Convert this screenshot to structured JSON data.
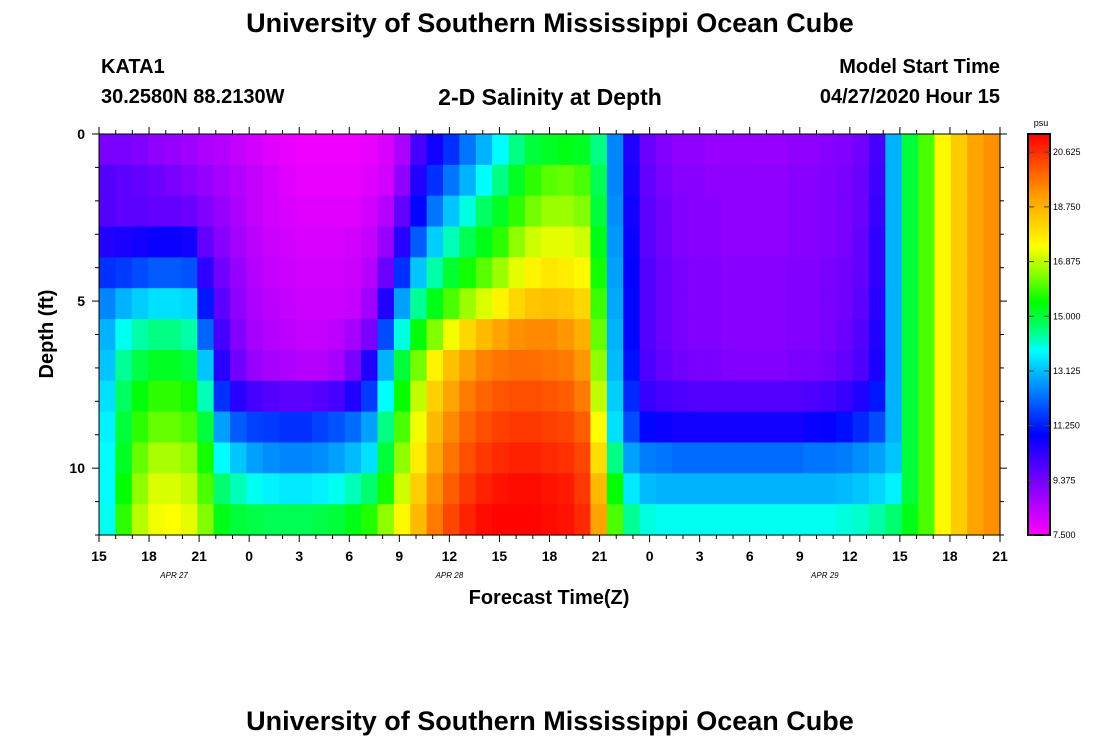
{
  "header": {
    "title": "University of Southern Mississippi Ocean Cube",
    "station": "KATA1",
    "coords": "30.2580N 88.2130W",
    "chart_title": "2-D Salinity at Depth",
    "model_start_label": "Model Start Time",
    "model_start_value": "04/27/2020 Hour 15"
  },
  "footer": {
    "title": "University of Southern Mississippi Ocean Cube"
  },
  "chart_data": {
    "type": "heatmap",
    "title": "2-D Salinity at Depth",
    "xlabel": "Forecast Time(Z)",
    "ylabel": "Depth (ft)",
    "units": "psu",
    "x_hours": [
      0,
      54
    ],
    "xtick_labels": [
      "15",
      "18",
      "21",
      "0",
      "3",
      "6",
      "9",
      "12",
      "15",
      "18",
      "21",
      "0",
      "3",
      "6",
      "9",
      "12",
      "15",
      "18",
      "21"
    ],
    "day_labels": [
      {
        "label": "APR 27",
        "hour": 4.5
      },
      {
        "label": "APR 28",
        "hour": 21
      },
      {
        "label": "APR 29",
        "hour": 43.5
      }
    ],
    "depth_rows_ft": [
      0,
      1,
      2,
      3,
      4,
      5,
      6,
      7,
      8,
      9,
      10,
      11,
      12
    ],
    "y_range_ft": [
      0,
      12
    ],
    "ytick_labels": [
      "0",
      "5",
      "10"
    ],
    "colorbar": {
      "min": 7.5,
      "max": 21.25,
      "tick_labels": [
        "20.625",
        "18.750",
        "16.875",
        "15.000",
        "13.125",
        "11.250",
        "9.375",
        "7.500"
      ],
      "tick_values": [
        20.625,
        18.75,
        16.875,
        15.0,
        13.125,
        11.25,
        9.375,
        7.5
      ]
    },
    "salinity_psu": [
      [
        9.3,
        9.3,
        9.2,
        9.0,
        8.9,
        8.8,
        8.6,
        8.5,
        8.3,
        8.1,
        7.9,
        7.8,
        7.7,
        7.7,
        7.7,
        7.7,
        7.8,
        8.0,
        8.6,
        10.0,
        10.7,
        11.5,
        12.3,
        13.0,
        13.8,
        14.5,
        15.0,
        15.2,
        15.3,
        15.2,
        14.5,
        12.5,
        10.5,
        9.5,
        9.2,
        9.0,
        9.0,
        8.9,
        8.9,
        8.9,
        8.9,
        8.9,
        9.0,
        9.0,
        9.1,
        9.2,
        9.4,
        10.0,
        13.0,
        15.0,
        16.0,
        17.5,
        18.3,
        19.0,
        19.3
      ],
      [
        9.8,
        9.7,
        9.6,
        9.5,
        9.3,
        9.1,
        8.9,
        8.7,
        8.5,
        8.3,
        8.1,
        7.9,
        7.8,
        7.8,
        7.8,
        7.8,
        7.9,
        8.1,
        9.0,
        10.5,
        11.5,
        12.3,
        13.0,
        13.8,
        14.5,
        15.2,
        15.8,
        16.1,
        16.2,
        16.0,
        14.8,
        12.5,
        10.6,
        9.6,
        9.3,
        9.1,
        9.1,
        9.0,
        9.0,
        9.0,
        9.0,
        9.0,
        9.1,
        9.1,
        9.2,
        9.3,
        9.5,
        10.1,
        13.0,
        15.0,
        16.0,
        17.5,
        18.3,
        19.0,
        19.3
      ],
      [
        9.8,
        9.7,
        9.7,
        9.6,
        9.6,
        9.5,
        9.2,
        8.9,
        8.6,
        8.3,
        8.1,
        8.0,
        7.9,
        7.9,
        7.9,
        7.9,
        8.1,
        8.5,
        9.6,
        11.0,
        12.3,
        13.2,
        14.0,
        14.7,
        15.2,
        15.8,
        16.3,
        16.6,
        16.6,
        16.4,
        15.0,
        12.6,
        10.7,
        9.7,
        9.4,
        9.2,
        9.1,
        9.1,
        9.0,
        9.0,
        9.0,
        9.0,
        9.1,
        9.1,
        9.2,
        9.3,
        9.5,
        10.2,
        13.0,
        15.0,
        16.0,
        17.5,
        18.3,
        19.0,
        19.3
      ],
      [
        10.5,
        10.6,
        10.7,
        10.8,
        10.8,
        10.7,
        9.6,
        9.1,
        8.7,
        8.4,
        8.2,
        8.1,
        8.0,
        8.0,
        8.0,
        8.1,
        8.3,
        8.9,
        10.4,
        12.0,
        13.3,
        14.2,
        14.8,
        15.3,
        15.8,
        16.5,
        17.0,
        17.2,
        17.2,
        17.0,
        15.3,
        12.7,
        10.8,
        9.7,
        9.4,
        9.2,
        9.1,
        9.1,
        9.0,
        9.0,
        9.0,
        9.0,
        9.1,
        9.1,
        9.2,
        9.3,
        9.6,
        10.3,
        13.0,
        15.0,
        16.0,
        17.5,
        18.3,
        19.0,
        19.3
      ],
      [
        11.5,
        11.6,
        11.8,
        12.0,
        12.0,
        11.9,
        10.3,
        9.4,
        8.9,
        8.5,
        8.3,
        8.2,
        8.1,
        8.1,
        8.1,
        8.2,
        8.5,
        9.5,
        11.5,
        13.2,
        14.3,
        15.1,
        15.6,
        16.1,
        16.6,
        17.2,
        17.6,
        17.8,
        17.7,
        17.5,
        15.6,
        12.8,
        10.9,
        9.8,
        9.5,
        9.3,
        9.2,
        9.2,
        9.1,
        9.1,
        9.1,
        9.1,
        9.2,
        9.2,
        9.3,
        9.4,
        9.6,
        10.3,
        13.0,
        15.0,
        16.0,
        17.5,
        18.3,
        19.0,
        19.3
      ],
      [
        12.5,
        13.0,
        13.3,
        13.5,
        13.5,
        13.4,
        11.2,
        9.7,
        9.0,
        8.6,
        8.4,
        8.3,
        8.2,
        8.2,
        8.2,
        8.3,
        8.8,
        10.5,
        12.8,
        14.4,
        15.3,
        16.0,
        16.6,
        17.1,
        17.6,
        18.1,
        18.4,
        18.5,
        18.4,
        18.1,
        15.9,
        12.9,
        11.0,
        9.8,
        9.5,
        9.3,
        9.2,
        9.2,
        9.1,
        9.1,
        9.1,
        9.1,
        9.2,
        9.2,
        9.3,
        9.4,
        9.7,
        10.4,
        13.0,
        15.0,
        16.0,
        17.5,
        18.3,
        19.0,
        19.3
      ],
      [
        13.0,
        13.9,
        14.3,
        14.5,
        14.5,
        14.3,
        12.1,
        10.0,
        9.2,
        8.7,
        8.5,
        8.4,
        8.3,
        8.3,
        8.4,
        8.7,
        9.3,
        11.8,
        14.0,
        15.4,
        16.4,
        17.3,
        18.1,
        18.6,
        19.0,
        19.3,
        19.4,
        19.4,
        19.2,
        18.8,
        16.2,
        13.0,
        11.0,
        9.8,
        9.5,
        9.3,
        9.2,
        9.2,
        9.1,
        9.1,
        9.1,
        9.1,
        9.2,
        9.2,
        9.3,
        9.5,
        9.8,
        10.5,
        13.0,
        15.0,
        16.0,
        17.5,
        18.3,
        19.0,
        19.3
      ],
      [
        13.2,
        14.4,
        14.9,
        15.2,
        15.2,
        15.0,
        13.2,
        10.4,
        9.4,
        8.9,
        8.7,
        8.6,
        8.5,
        8.5,
        8.7,
        9.3,
        10.5,
        13.0,
        15.0,
        16.3,
        17.6,
        18.5,
        19.1,
        19.5,
        19.7,
        19.8,
        19.8,
        19.7,
        19.6,
        19.2,
        16.5,
        13.1,
        11.1,
        9.9,
        9.6,
        9.4,
        9.3,
        9.3,
        9.2,
        9.2,
        9.2,
        9.2,
        9.3,
        9.3,
        9.4,
        9.6,
        9.9,
        10.6,
        13.0,
        15.0,
        16.0,
        17.5,
        18.3,
        19.0,
        19.3
      ],
      [
        13.5,
        14.7,
        15.4,
        15.8,
        15.8,
        15.6,
        14.2,
        11.5,
        10.4,
        10.0,
        9.8,
        9.7,
        9.7,
        9.8,
        10.0,
        10.5,
        11.6,
        13.8,
        15.5,
        16.9,
        18.2,
        19.0,
        19.6,
        19.9,
        20.1,
        20.2,
        20.2,
        20.1,
        20.0,
        19.6,
        16.9,
        13.3,
        11.4,
        10.2,
        10.0,
        9.9,
        9.8,
        9.8,
        9.8,
        9.8,
        9.8,
        9.8,
        9.8,
        9.9,
        10.0,
        10.2,
        10.5,
        11.2,
        13.0,
        15.0,
        16.0,
        17.5,
        18.3,
        19.0,
        19.3
      ],
      [
        13.7,
        15.0,
        15.8,
        16.2,
        16.2,
        16.0,
        15.0,
        12.8,
        12.0,
        11.7,
        11.6,
        11.5,
        11.5,
        11.7,
        11.9,
        12.2,
        12.8,
        14.5,
        16.0,
        17.3,
        18.6,
        19.4,
        19.9,
        20.2,
        20.4,
        20.5,
        20.5,
        20.4,
        20.3,
        20.0,
        17.4,
        13.5,
        11.8,
        11.0,
        10.8,
        10.7,
        10.7,
        10.7,
        10.7,
        10.7,
        10.7,
        10.7,
        10.7,
        10.8,
        10.9,
        11.1,
        11.4,
        11.8,
        13.0,
        15.0,
        16.0,
        17.5,
        18.3,
        19.0,
        19.3
      ],
      [
        13.8,
        15.2,
        16.2,
        16.7,
        16.7,
        16.5,
        15.6,
        13.8,
        13.2,
        12.8,
        12.6,
        12.5,
        12.5,
        12.6,
        12.8,
        13.1,
        13.5,
        15.0,
        16.5,
        17.7,
        18.9,
        19.7,
        20.2,
        20.5,
        20.7,
        20.8,
        20.8,
        20.7,
        20.6,
        20.3,
        18.0,
        14.5,
        12.8,
        12.4,
        12.3,
        12.2,
        12.2,
        12.2,
        12.2,
        12.2,
        12.2,
        12.2,
        12.2,
        12.3,
        12.3,
        12.4,
        12.6,
        12.8,
        13.2,
        15.0,
        16.0,
        17.5,
        18.3,
        19.0,
        19.3
      ],
      [
        13.8,
        15.5,
        16.5,
        17.1,
        17.1,
        16.9,
        16.0,
        14.6,
        14.2,
        13.9,
        13.7,
        13.6,
        13.6,
        13.7,
        13.9,
        14.2,
        14.6,
        15.6,
        17.0,
        18.2,
        19.3,
        20.0,
        20.5,
        20.8,
        21.0,
        21.1,
        21.1,
        21.0,
        20.9,
        20.5,
        18.6,
        15.5,
        13.6,
        13.1,
        13.0,
        13.0,
        13.0,
        13.0,
        13.0,
        13.0,
        13.0,
        13.0,
        13.0,
        13.0,
        13.0,
        13.1,
        13.2,
        13.4,
        13.7,
        15.0,
        16.0,
        17.5,
        18.3,
        19.0,
        19.3
      ],
      [
        13.9,
        15.8,
        16.8,
        17.3,
        17.4,
        17.2,
        16.4,
        15.3,
        15.0,
        14.9,
        14.8,
        14.8,
        14.8,
        14.9,
        15.0,
        15.3,
        15.7,
        16.5,
        17.5,
        18.6,
        19.6,
        20.3,
        20.8,
        21.1,
        21.2,
        21.2,
        21.2,
        21.1,
        21.0,
        20.7,
        19.0,
        16.0,
        14.4,
        14.0,
        13.9,
        13.9,
        13.9,
        13.9,
        13.9,
        13.9,
        13.9,
        13.9,
        13.9,
        13.9,
        13.9,
        14.0,
        14.1,
        14.3,
        14.6,
        15.3,
        16.0,
        17.5,
        18.3,
        19.0,
        19.3
      ]
    ]
  }
}
